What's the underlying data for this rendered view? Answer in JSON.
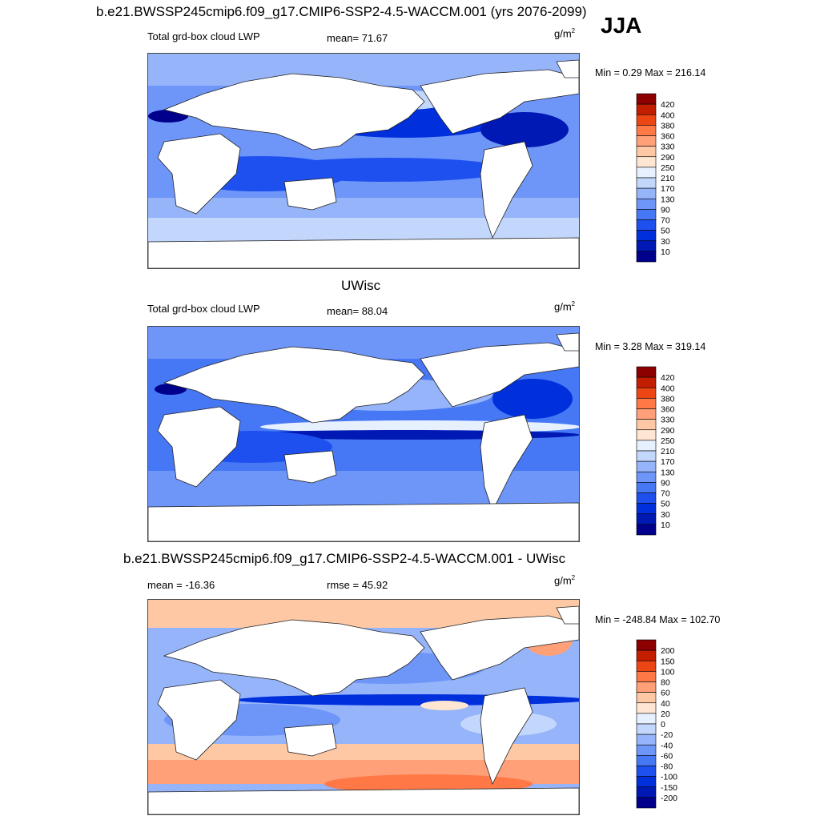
{
  "season": "JJA",
  "panels": [
    {
      "title": "b.e21.BWSSP245cmip6.f09_g17.CMIP6-SSP2-4.5-WACCM.001 (yrs 2076-2099)",
      "left_label": "Total grd-box cloud LWP",
      "center_label": "mean=  71.67",
      "units": "g/m",
      "units_exp": "2",
      "minmax": "Min =   0.29 Max = 216.14",
      "palette": "abs"
    },
    {
      "title": "UWisc",
      "left_label": "Total grd-box cloud LWP",
      "center_label": "mean=  88.04",
      "units": "g/m",
      "units_exp": "2",
      "minmax": "Min =   3.28 Max = 319.14",
      "palette": "abs"
    },
    {
      "title": "b.e21.BWSSP245cmip6.f09_g17.CMIP6-SSP2-4.5-WACCM.001 - UWisc",
      "left_label": "mean = -16.36",
      "center_label": "rmse =  45.92",
      "units": "g/m",
      "units_exp": "2",
      "minmax": "Min = -248.84 Max = 102.70",
      "palette": "diff"
    }
  ],
  "colorbars": {
    "abs": {
      "labels": [
        "10",
        "30",
        "50",
        "70",
        "90",
        "130",
        "170",
        "210",
        "250",
        "290",
        "330",
        "360",
        "380",
        "400",
        "420"
      ],
      "colors": [
        "#00008c",
        "#0018b4",
        "#0030dc",
        "#1e50f0",
        "#4678f5",
        "#6e96f8",
        "#96b4fa",
        "#c3d7fc",
        "#e6f0ff",
        "#ffe6d2",
        "#ffc8a5",
        "#ffa078",
        "#ff7846",
        "#eb4614",
        "#c31e00",
        "#8c0000"
      ]
    },
    "diff": {
      "labels": [
        "-200",
        "-150",
        "-100",
        "-80",
        "-60",
        "-40",
        "-20",
        "0",
        "20",
        "40",
        "60",
        "80",
        "100",
        "150",
        "200"
      ],
      "colors": [
        "#00008c",
        "#0018b4",
        "#0030dc",
        "#1e50f0",
        "#4678f5",
        "#6e96f8",
        "#96b4fa",
        "#c3d7fc",
        "#e6f0ff",
        "#ffe6d2",
        "#ffc8a5",
        "#ffa078",
        "#ff7846",
        "#eb4614",
        "#c31e00",
        "#8c0000"
      ]
    }
  },
  "map_colors": {
    "land": "#ffffff",
    "coast": "#222222",
    "abs_deep": "#0a22c8",
    "abs_mid": "#2a5aec",
    "abs_light": "#5a8cf5",
    "abs_pale": "#9ec0fb",
    "abs_paler": "#c8dcfd",
    "diff_neg_strong": "#0a2ad0",
    "diff_neg": "#3f6ff2",
    "diff_neg_light": "#8fb2f9",
    "diff_pale": "#d6e4fd",
    "diff_pos_pale": "#ffd9c0",
    "diff_pos": "#ff9a70",
    "diff_pos_strong": "#f06438"
  }
}
